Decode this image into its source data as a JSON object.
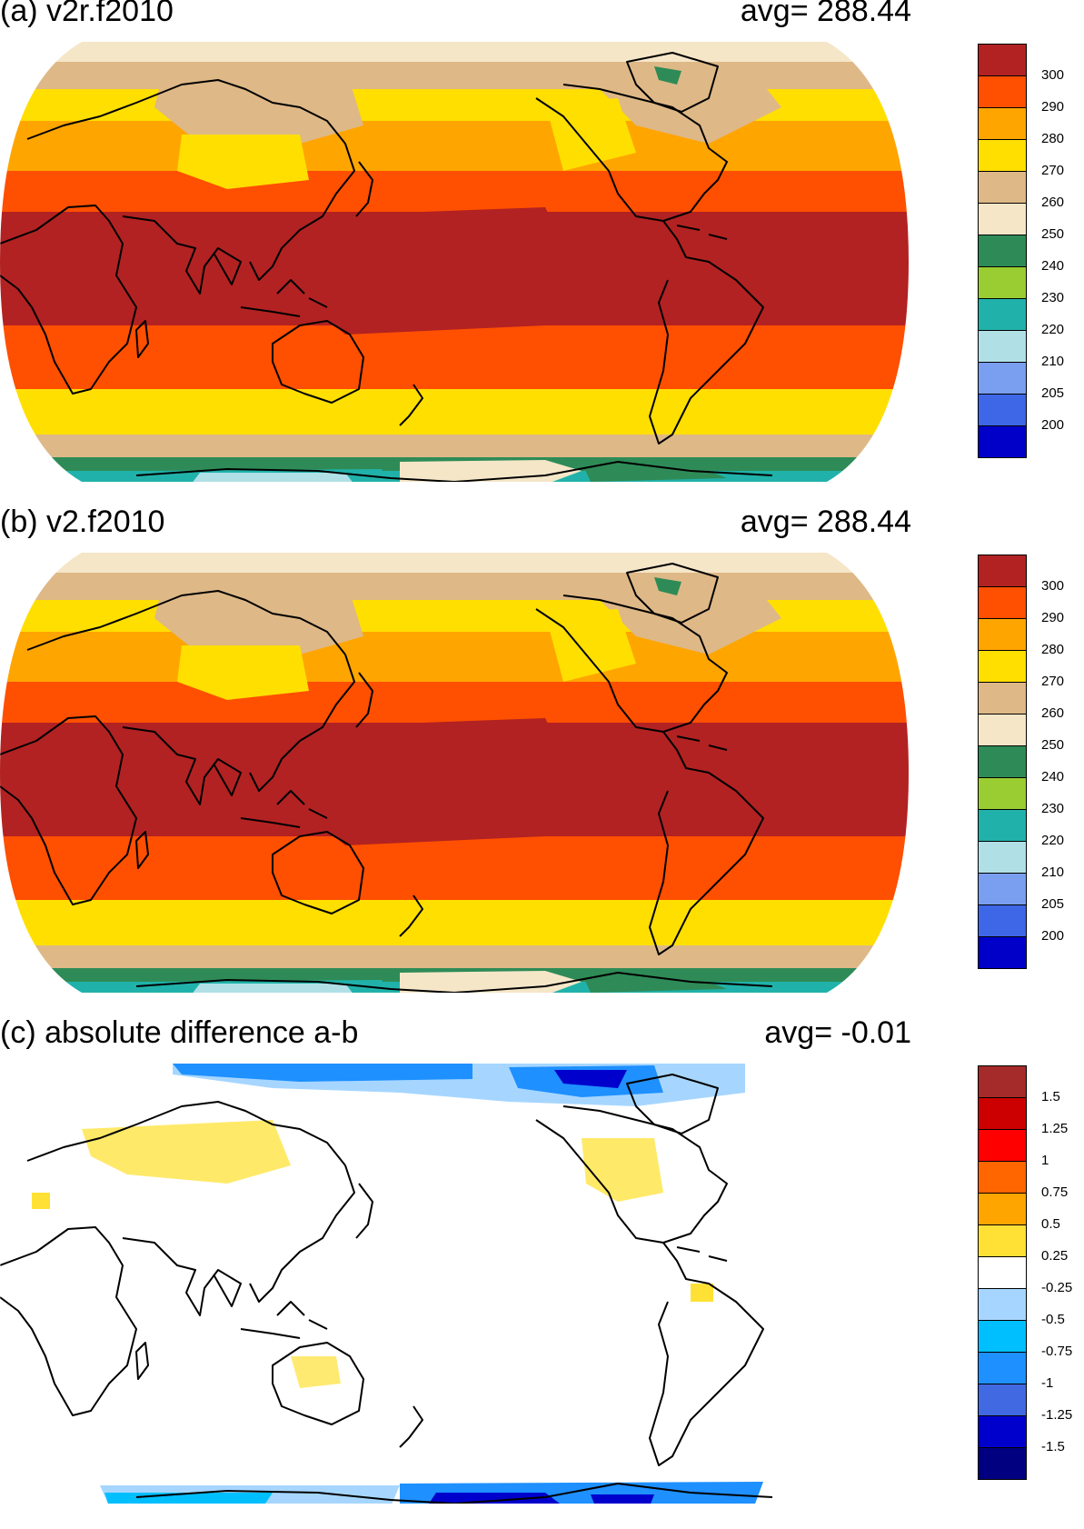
{
  "panels": [
    {
      "title": "(a) v2r.f2010",
      "avg_label": "avg=  288.44",
      "colorbar": {
        "colors": [
          "#0000c8",
          "#3d67e6",
          "#7a9ef0",
          "#b0e0e6",
          "#20b2aa",
          "#9acd32",
          "#2e8b57",
          "#f5e6c8",
          "#deb887",
          "#ffdf00",
          "#ffa500",
          "#ff4f00",
          "#b22222"
        ],
        "labels": [
          "200",
          "205",
          "210",
          "220",
          "230",
          "240",
          "250",
          "260",
          "270",
          "280",
          "290",
          "300"
        ]
      },
      "map_kind": "temperature"
    },
    {
      "title": "(b) v2.f2010",
      "avg_label": "avg=  288.44",
      "colorbar": {
        "colors": [
          "#0000c8",
          "#3d67e6",
          "#7a9ef0",
          "#b0e0e6",
          "#20b2aa",
          "#9acd32",
          "#2e8b57",
          "#f5e6c8",
          "#deb887",
          "#ffdf00",
          "#ffa500",
          "#ff4f00",
          "#b22222"
        ],
        "labels": [
          "200",
          "205",
          "210",
          "220",
          "230",
          "240",
          "250",
          "260",
          "270",
          "280",
          "290",
          "300"
        ]
      },
      "map_kind": "temperature"
    },
    {
      "title": "(c) absolute difference a-b",
      "avg_label": "avg=   -0.01",
      "colorbar": {
        "colors": [
          "#000080",
          "#0000cd",
          "#4169e1",
          "#1e90ff",
          "#00bfff",
          "#a6d6ff",
          "#ffffff",
          "#ffe135",
          "#ffa500",
          "#ff6600",
          "#ff0000",
          "#cc0000",
          "#a52a2a"
        ],
        "labels": [
          "-1.5",
          "-1.25",
          "-1",
          "-0.75",
          "-0.5",
          "-0.25",
          "0.25",
          "0.5",
          "0.75",
          "1",
          "1.25",
          "1.5"
        ]
      },
      "map_kind": "difference"
    }
  ]
}
